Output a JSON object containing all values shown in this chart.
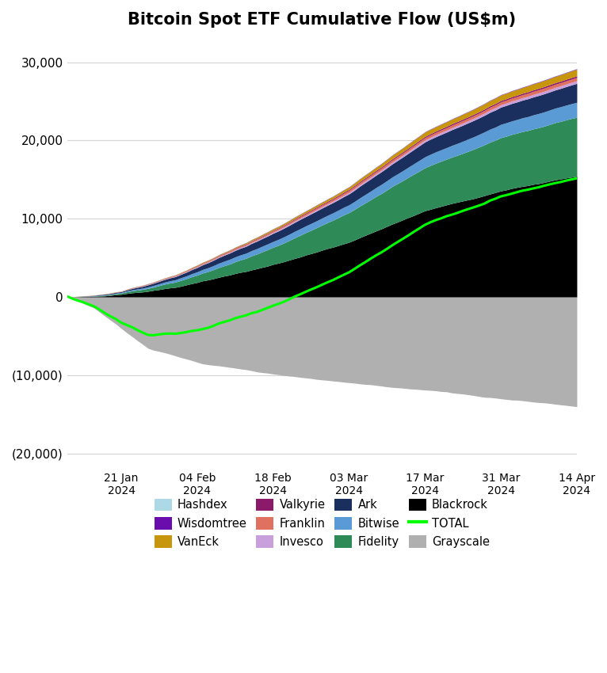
{
  "title": "Bitcoin Spot ETF Cumulative Flow (US$m)",
  "x_labels": [
    "21 Jan\n2024",
    "04 Feb\n2024",
    "18 Feb\n2024",
    "03 Mar\n2024",
    "17 Mar\n2024",
    "31 Mar\n2024",
    "14 Apr\n2024"
  ],
  "x_ticks_pos": [
    10,
    24,
    38,
    52,
    66,
    80,
    94
  ],
  "n_points": 95,
  "ylim": [
    -22000,
    32000
  ],
  "yticks": [
    -20000,
    -10000,
    0,
    10000,
    20000,
    30000
  ],
  "ytick_labels": [
    "(20,000)",
    "(10,000)",
    "0",
    "10,000",
    "20,000",
    "30,000"
  ],
  "colors": {
    "Hashdex": "#add8e6",
    "Wisdomtree": "#6a0dad",
    "VanEck": "#c8960c",
    "Valkyrie": "#8b1a6b",
    "Franklin": "#e07060",
    "Invesco": "#c9a0dc",
    "Ark": "#1a2f5e",
    "Bitwise": "#5b9bd5",
    "Fidelity": "#2e8b57",
    "Blackrock": "#000000",
    "TOTAL": "#00ff00",
    "Grayscale": "#b0b0b0"
  },
  "legend_order": [
    "Hashdex",
    "Wisdomtree",
    "VanEck",
    "Valkyrie",
    "Franklin",
    "Invesco",
    "Ark",
    "Bitwise",
    "Fidelity",
    "Blackrock",
    "TOTAL",
    "Grayscale"
  ]
}
